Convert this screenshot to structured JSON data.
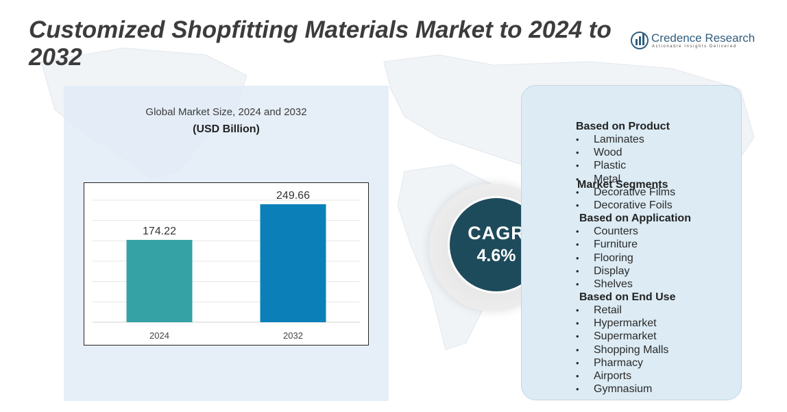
{
  "header": {
    "title": "Customized Shopfitting Materials Market to 2024 to 2032",
    "brand_name": "Credence Research",
    "brand_tagline": "Actionable Insights Delivered"
  },
  "chart_data": {
    "type": "bar",
    "title": "Global Market Size,  2024 and 2032",
    "unit": "(USD Billion)",
    "categories": [
      "2024",
      "2032"
    ],
    "values": [
      174.22,
      249.66
    ],
    "value_labels": [
      "174.22",
      "249.66"
    ],
    "colors": [
      "#35a3a5",
      "#0b80b8"
    ],
    "ylim": [
      0,
      280
    ],
    "grid": true,
    "xlabel": "",
    "ylabel": ""
  },
  "cagr": {
    "label": "CAGR",
    "value": "4.6%"
  },
  "segments": {
    "heading": "Market Segments",
    "bullet": "•",
    "groups": [
      {
        "title": "Based on Product",
        "items": [
          "Laminates",
          "Wood",
          "Plastic",
          "Metal",
          "Decorative Films",
          "Decorative Foils"
        ]
      },
      {
        "title": "Based on Application",
        "items": [
          "Counters",
          "Furniture",
          "Flooring",
          "Display",
          "Shelves"
        ]
      },
      {
        "title": "Based on End Use",
        "items": [
          "Retail",
          "Hypermarket",
          "Supermarket",
          "Shopping Malls",
          "Pharmacy",
          "Airports",
          "Gymnasium"
        ]
      }
    ]
  }
}
